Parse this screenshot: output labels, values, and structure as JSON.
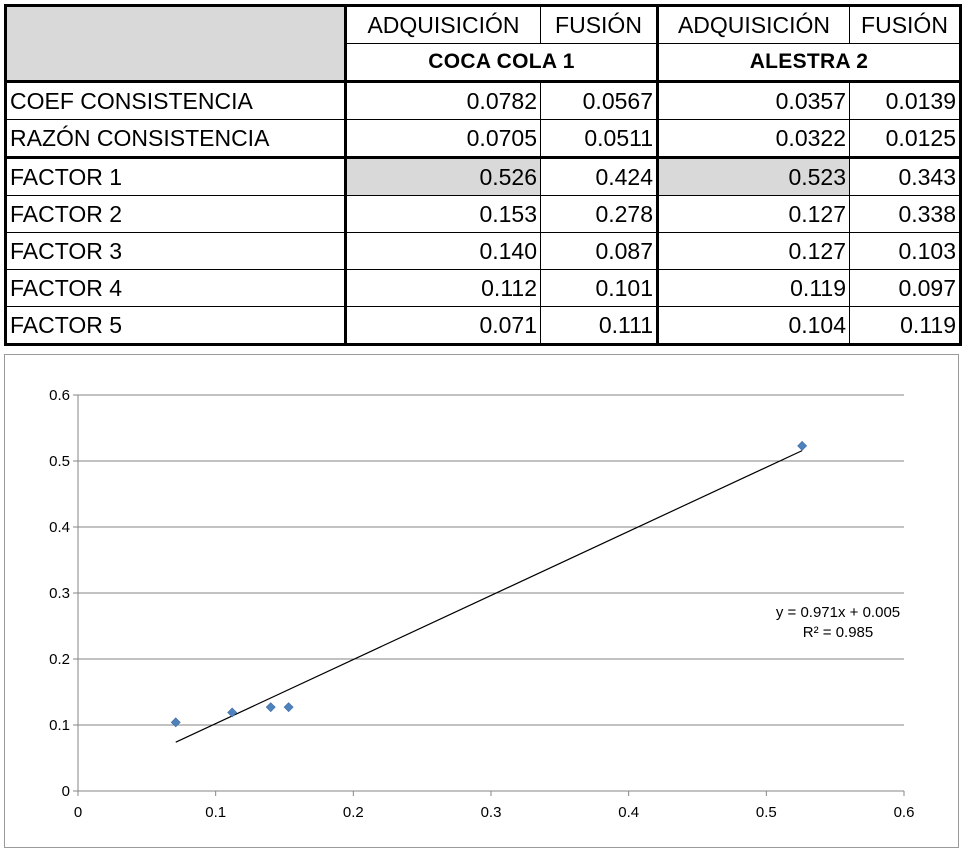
{
  "table": {
    "header_row1": [
      "ADQUISICIÓN",
      "FUSIÓN",
      "ADQUISICIÓN",
      "FUSIÓN"
    ],
    "groups": [
      "COCA COLA 1",
      "ALESTRA 2"
    ],
    "rows": [
      {
        "label": "COEF CONSISTENCIA",
        "values": [
          "0.0782",
          "0.0567",
          "0.0357",
          "0.0139"
        ]
      },
      {
        "label": "RAZÓN CONSISTENCIA",
        "values": [
          "0.0705",
          "0.0511",
          "0.0322",
          "0.0125"
        ]
      },
      {
        "label": "FACTOR 1",
        "values": [
          "0.526",
          "0.424",
          "0.523",
          "0.343"
        ]
      },
      {
        "label": "FACTOR 2",
        "values": [
          "0.153",
          "0.278",
          "0.127",
          "0.338"
        ]
      },
      {
        "label": "FACTOR 3",
        "values": [
          "0.140",
          "0.087",
          "0.127",
          "0.103"
        ]
      },
      {
        "label": "FACTOR 4",
        "values": [
          "0.112",
          "0.101",
          "0.119",
          "0.097"
        ]
      },
      {
        "label": "FACTOR 5",
        "values": [
          "0.071",
          "0.111",
          "0.104",
          "0.119"
        ]
      }
    ],
    "highlight_color": "#d9d9d9"
  },
  "chart_data": {
    "type": "scatter",
    "title": "",
    "xlabel": "",
    "ylabel": "",
    "xlim": [
      0,
      0.6
    ],
    "ylim": [
      0,
      0.6
    ],
    "x_ticks": [
      "0",
      "0.1",
      "0.2",
      "0.3",
      "0.4",
      "0.5",
      "0.6"
    ],
    "y_ticks": [
      "0",
      "0.1",
      "0.2",
      "0.3",
      "0.4",
      "0.5",
      "0.6"
    ],
    "grid": "horizontal",
    "series": [
      {
        "marker": "diamond",
        "color": "#4f81bd",
        "points": [
          {
            "x": 0.526,
            "y": 0.523
          },
          {
            "x": 0.153,
            "y": 0.127
          },
          {
            "x": 0.14,
            "y": 0.127
          },
          {
            "x": 0.112,
            "y": 0.119
          },
          {
            "x": 0.071,
            "y": 0.104
          }
        ]
      }
    ],
    "trendline": {
      "slope": 0.971,
      "intercept": 0.005,
      "x_range": [
        0.071,
        0.526
      ],
      "color": "#000000",
      "equation_text": "y = 0.971x + 0.005",
      "r2_text": "R² = 0.985"
    }
  }
}
